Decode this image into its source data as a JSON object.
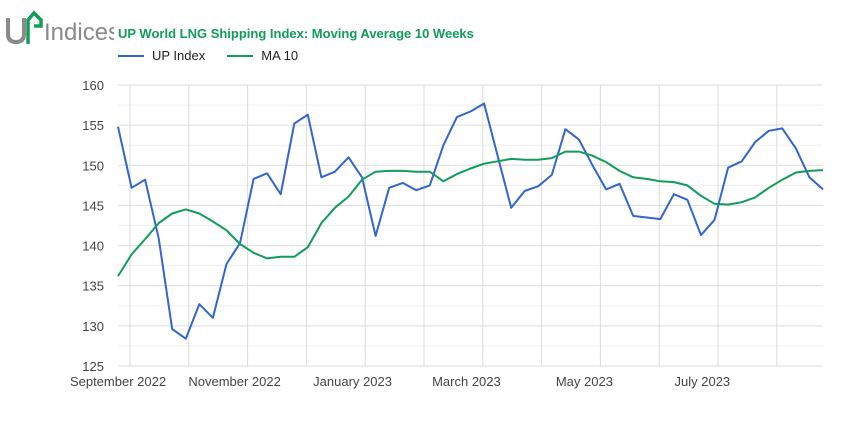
{
  "logo": {
    "text": "UP Indices"
  },
  "chart_data": {
    "type": "line",
    "title": "UP World LNG Shipping Index: Moving Average 10 Weeks",
    "xlabel": "",
    "ylabel": "",
    "ylim": [
      125,
      160
    ],
    "yticks": [
      160,
      155,
      150,
      145,
      140,
      135,
      130,
      125
    ],
    "xticks": [
      {
        "label": "September 2022",
        "week": 1
      },
      {
        "label": "November 2022",
        "week": 9.6
      },
      {
        "label": "January 2023",
        "week": 18.3
      },
      {
        "label": "March 2023",
        "week": 26.7
      },
      {
        "label": "May 2023",
        "week": 35.4
      },
      {
        "label": "July 2023",
        "week": 44.1
      }
    ],
    "grid": true,
    "legend": "top-left",
    "series": [
      {
        "name": "UP Index",
        "color": "#3366cc",
        "values": [
          154.8,
          147.2,
          148.2,
          140.9,
          129.6,
          128.4,
          132.7,
          131.0,
          137.7,
          140.3,
          148.3,
          149.0,
          146.4,
          155.2,
          156.3,
          148.5,
          149.2,
          151.0,
          148.5,
          141.2,
          147.2,
          147.8,
          146.9,
          147.5,
          152.5,
          156.0,
          156.7,
          157.7,
          151.2,
          144.7,
          146.8,
          147.4,
          148.8,
          154.5,
          153.2,
          150.0,
          147.0,
          147.7,
          143.7,
          143.5,
          143.3,
          146.4,
          145.7,
          141.3,
          143.2,
          149.7,
          150.5,
          152.9,
          154.3,
          154.6,
          152.1,
          148.5,
          147.0
        ]
      },
      {
        "name": "MA 10",
        "color": "#0f9d58",
        "values": [
          136.2,
          138.9,
          140.8,
          142.8,
          144.0,
          144.5,
          144.0,
          143.0,
          141.9,
          140.2,
          139.1,
          138.4,
          138.6,
          138.6,
          139.8,
          142.8,
          144.7,
          146.1,
          148.2,
          149.2,
          149.3,
          149.3,
          149.2,
          149.2,
          148.0,
          148.9,
          149.6,
          150.2,
          150.5,
          150.8,
          150.7,
          150.7,
          150.9,
          151.7,
          151.7,
          151.2,
          150.4,
          149.3,
          148.5,
          148.3,
          148.0,
          147.9,
          147.5,
          146.2,
          145.2,
          145.1,
          145.4,
          146.0,
          147.2,
          148.2,
          149.1,
          149.3,
          149.4
        ]
      }
    ]
  }
}
